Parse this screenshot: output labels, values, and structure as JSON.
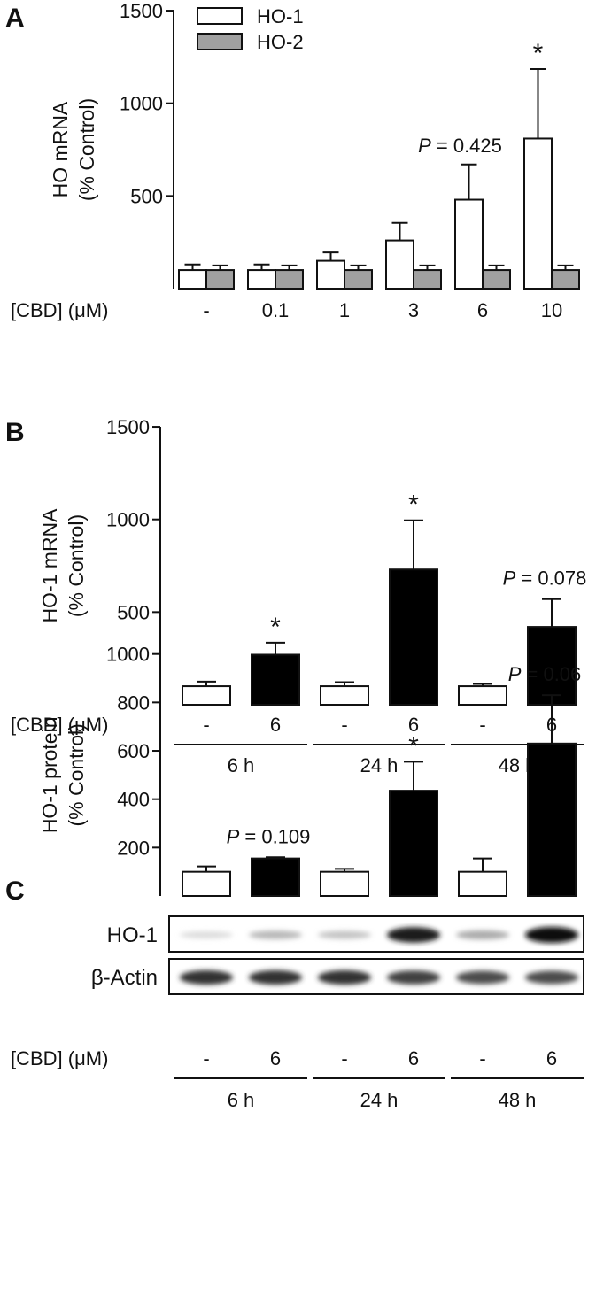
{
  "colors": {
    "ho1_fill": "#ffffff",
    "ho2_fill": "#a0a0a0",
    "treated_fill": "#000000",
    "control_fill": "#ffffff",
    "stroke": "#111111"
  },
  "chart_data": [
    {
      "panel": "A",
      "type": "bar",
      "ylabel_line1": "HO mRNA",
      "ylabel_line2": "(% Control)",
      "row_label": "[CBD] (μM)",
      "categories": [
        "-",
        "0.1",
        "1",
        "3",
        "6",
        "10"
      ],
      "ylim": [
        0,
        1500
      ],
      "yticks": [
        500,
        1000,
        1500
      ],
      "legend_position": "top-left",
      "series": [
        {
          "name": "HO-1",
          "values": [
            100,
            100,
            150,
            260,
            480,
            810
          ],
          "errors": [
            30,
            30,
            45,
            95,
            190,
            375
          ]
        },
        {
          "name": "HO-2",
          "values": [
            100,
            100,
            100,
            100,
            100,
            100
          ],
          "errors": [
            25,
            25,
            25,
            25,
            25,
            25
          ]
        }
      ],
      "annotations": [
        {
          "category_index": 4,
          "series_index": 0,
          "text_italic": "P",
          "text_rest": " = 0.425"
        },
        {
          "category_index": 5,
          "series_index": 0,
          "star": "*"
        }
      ]
    },
    {
      "panel": "B",
      "type": "bar",
      "ylabel_line1": "HO-1 mRNA",
      "ylabel_line2": "(% Control)",
      "row_label": "[CBD] (μM)",
      "ylim": [
        0,
        1500
      ],
      "yticks": [
        500,
        1000,
        1500
      ],
      "groups": [
        "6 h",
        "24 h",
        "48 h"
      ],
      "bars": [
        {
          "label": "-",
          "value": 100,
          "error": 25,
          "treated": false
        },
        {
          "label": "6",
          "value": 270,
          "error": 65,
          "treated": true
        },
        {
          "label": "-",
          "value": 100,
          "error": 22,
          "treated": false
        },
        {
          "label": "6",
          "value": 730,
          "error": 265,
          "treated": true
        },
        {
          "label": "-",
          "value": 100,
          "error": 12,
          "treated": false
        },
        {
          "label": "6",
          "value": 420,
          "error": 150,
          "treated": true
        }
      ],
      "annotations": [
        {
          "bar_index": 1,
          "star": "*"
        },
        {
          "bar_index": 3,
          "star": "*"
        },
        {
          "bar_index": 5,
          "text_italic": "P",
          "text_rest": " = 0.078"
        }
      ]
    },
    {
      "panel": "C",
      "type": "bar",
      "ylabel_line1": "HO-1 protein",
      "ylabel_line2": "(% Control)",
      "row_label": "[CBD] (μM)",
      "ylim": [
        0,
        1000
      ],
      "yticks": [
        200,
        400,
        600,
        800,
        1000
      ],
      "groups": [
        "6 h",
        "24 h",
        "48 h"
      ],
      "bars": [
        {
          "label": "-",
          "value": 100,
          "error": 22,
          "treated": false
        },
        {
          "label": "6",
          "value": 155,
          "error": 5,
          "treated": true
        },
        {
          "label": "-",
          "value": 100,
          "error": 12,
          "treated": false
        },
        {
          "label": "6",
          "value": 435,
          "error": 120,
          "treated": true
        },
        {
          "label": "-",
          "value": 100,
          "error": 55,
          "treated": false
        },
        {
          "label": "6",
          "value": 630,
          "error": 200,
          "treated": true
        }
      ],
      "annotations": [
        {
          "bar_index": 1,
          "text_italic": "P",
          "text_rest": " = 0.109"
        },
        {
          "bar_index": 3,
          "star": "*"
        },
        {
          "bar_index": 5,
          "text_italic": "P",
          "text_rest": " = 0.06"
        }
      ],
      "blots": [
        {
          "label": "HO-1",
          "intensity": [
            0.15,
            0.3,
            0.25,
            0.95,
            0.35,
            1.0
          ]
        },
        {
          "label": "β-Actin",
          "intensity": [
            0.85,
            0.85,
            0.85,
            0.8,
            0.75,
            0.75
          ]
        }
      ]
    }
  ]
}
